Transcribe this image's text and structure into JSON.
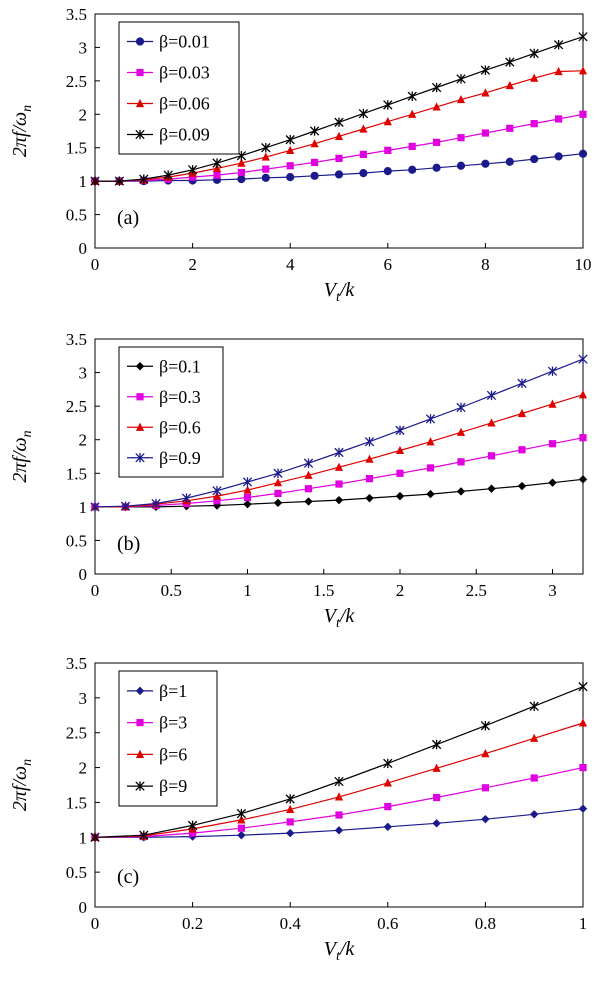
{
  "chart_data": [
    {
      "type": "line",
      "panel_label": "(a)",
      "xlabel": "V_t/k",
      "ylabel": "2πf/ω_n",
      "xlim": [
        0,
        10
      ],
      "ylim": [
        0,
        3.5
      ],
      "xticks": [
        "0",
        "2",
        "4",
        "6",
        "8",
        "10"
      ],
      "yticks": [
        "0",
        "0.5",
        "1",
        "1.5",
        "2",
        "2.5",
        "3",
        "3.5"
      ],
      "legend_position": "top-left",
      "x": [
        0,
        0.5,
        1,
        1.5,
        2,
        2.5,
        3,
        3.5,
        4,
        4.5,
        5,
        5.5,
        6,
        6.5,
        7,
        7.5,
        8,
        8.5,
        9,
        9.5,
        10
      ],
      "series": [
        {
          "name": "β=0.01",
          "color": "#1a1a8c",
          "marker": "circle",
          "values": [
            1.0,
            1.0,
            1.0,
            1.01,
            1.01,
            1.02,
            1.03,
            1.05,
            1.06,
            1.08,
            1.1,
            1.12,
            1.15,
            1.17,
            1.2,
            1.23,
            1.26,
            1.29,
            1.33,
            1.37,
            1.41
          ]
        },
        {
          "name": "β=0.03",
          "color": "#e000e0",
          "marker": "square",
          "values": [
            1.0,
            1.0,
            1.01,
            1.03,
            1.06,
            1.09,
            1.13,
            1.18,
            1.23,
            1.28,
            1.34,
            1.4,
            1.46,
            1.52,
            1.58,
            1.65,
            1.72,
            1.79,
            1.86,
            1.93,
            2.0
          ]
        },
        {
          "name": "β=0.06",
          "color": "#e00000",
          "marker": "triangle",
          "values": [
            1.0,
            1.0,
            1.02,
            1.06,
            1.12,
            1.19,
            1.27,
            1.36,
            1.46,
            1.56,
            1.67,
            1.78,
            1.89,
            2.0,
            2.11,
            2.22,
            2.32,
            2.43,
            2.54,
            2.64,
            2.65
          ]
        },
        {
          "name": "β=0.09",
          "color": "#000000",
          "marker": "star",
          "values": [
            1.0,
            1.0,
            1.03,
            1.09,
            1.17,
            1.27,
            1.38,
            1.5,
            1.62,
            1.75,
            1.88,
            2.01,
            2.14,
            2.27,
            2.4,
            2.53,
            2.66,
            2.78,
            2.91,
            3.04,
            3.16
          ]
        }
      ]
    },
    {
      "type": "line",
      "panel_label": "(b)",
      "xlabel": "V_t/k",
      "ylabel": "2πf/ω_n",
      "xlim": [
        0,
        3.2
      ],
      "ylim": [
        0,
        3.5
      ],
      "xticks": [
        "0",
        "0.5",
        "1",
        "1.5",
        "2",
        "2.5",
        "3"
      ],
      "yticks": [
        "0",
        "0.5",
        "1",
        "1.5",
        "2",
        "2.5",
        "3",
        "3.5"
      ],
      "legend_position": "top-left",
      "x": [
        0,
        0.2,
        0.4,
        0.6,
        0.8,
        1.0,
        1.2,
        1.4,
        1.6,
        1.8,
        2.0,
        2.2,
        2.4,
        2.6,
        2.8,
        3.0,
        3.2
      ],
      "series": [
        {
          "name": "β=0.1",
          "color": "#000000",
          "marker": "diamond",
          "values": [
            1.0,
            1.0,
            1.0,
            1.01,
            1.02,
            1.04,
            1.06,
            1.08,
            1.1,
            1.13,
            1.16,
            1.19,
            1.23,
            1.27,
            1.31,
            1.36,
            1.41
          ]
        },
        {
          "name": "β=0.3",
          "color": "#e000e0",
          "marker": "square",
          "values": [
            1.0,
            1.0,
            1.02,
            1.05,
            1.09,
            1.14,
            1.2,
            1.27,
            1.34,
            1.42,
            1.5,
            1.58,
            1.67,
            1.76,
            1.85,
            1.94,
            2.03
          ]
        },
        {
          "name": "β=0.6",
          "color": "#e00000",
          "marker": "triangle",
          "values": [
            1.0,
            1.0,
            1.04,
            1.09,
            1.16,
            1.25,
            1.36,
            1.47,
            1.59,
            1.71,
            1.84,
            1.97,
            2.11,
            2.25,
            2.39,
            2.53,
            2.67
          ]
        },
        {
          "name": "β=0.9",
          "color": "#1a1a8c",
          "marker": "star",
          "values": [
            1.0,
            1.01,
            1.05,
            1.13,
            1.24,
            1.37,
            1.5,
            1.65,
            1.81,
            1.97,
            2.14,
            2.31,
            2.48,
            2.66,
            2.84,
            3.02,
            3.2
          ]
        }
      ]
    },
    {
      "type": "line",
      "panel_label": "(c)",
      "xlabel": "V_t/k",
      "ylabel": "2πf/ω_n",
      "xlim": [
        0,
        1
      ],
      "ylim": [
        0,
        3.5
      ],
      "xticks": [
        "0",
        "0.2",
        "0.4",
        "0.6",
        "0.8",
        "1"
      ],
      "yticks": [
        "0",
        "0.5",
        "1",
        "1.5",
        "2",
        "2.5",
        "3",
        "3.5"
      ],
      "legend_position": "top-left",
      "x": [
        0,
        0.1,
        0.2,
        0.3,
        0.4,
        0.5,
        0.6,
        0.7,
        0.8,
        0.9,
        1.0
      ],
      "series": [
        {
          "name": "β=1",
          "color": "#1a1a8c",
          "marker": "diamond",
          "values": [
            1.0,
            1.0,
            1.01,
            1.03,
            1.06,
            1.1,
            1.15,
            1.2,
            1.26,
            1.33,
            1.41
          ]
        },
        {
          "name": "β=3",
          "color": "#e000e0",
          "marker": "square",
          "values": [
            1.0,
            1.01,
            1.06,
            1.13,
            1.22,
            1.32,
            1.44,
            1.57,
            1.71,
            1.85,
            2.0
          ]
        },
        {
          "name": "β=6",
          "color": "#e00000",
          "marker": "triangle",
          "values": [
            1.0,
            1.02,
            1.12,
            1.25,
            1.4,
            1.58,
            1.78,
            1.99,
            2.2,
            2.42,
            2.64
          ]
        },
        {
          "name": "β=9",
          "color": "#000000",
          "marker": "star",
          "values": [
            1.0,
            1.03,
            1.17,
            1.34,
            1.55,
            1.8,
            2.06,
            2.33,
            2.6,
            2.88,
            3.16
          ]
        }
      ]
    }
  ]
}
